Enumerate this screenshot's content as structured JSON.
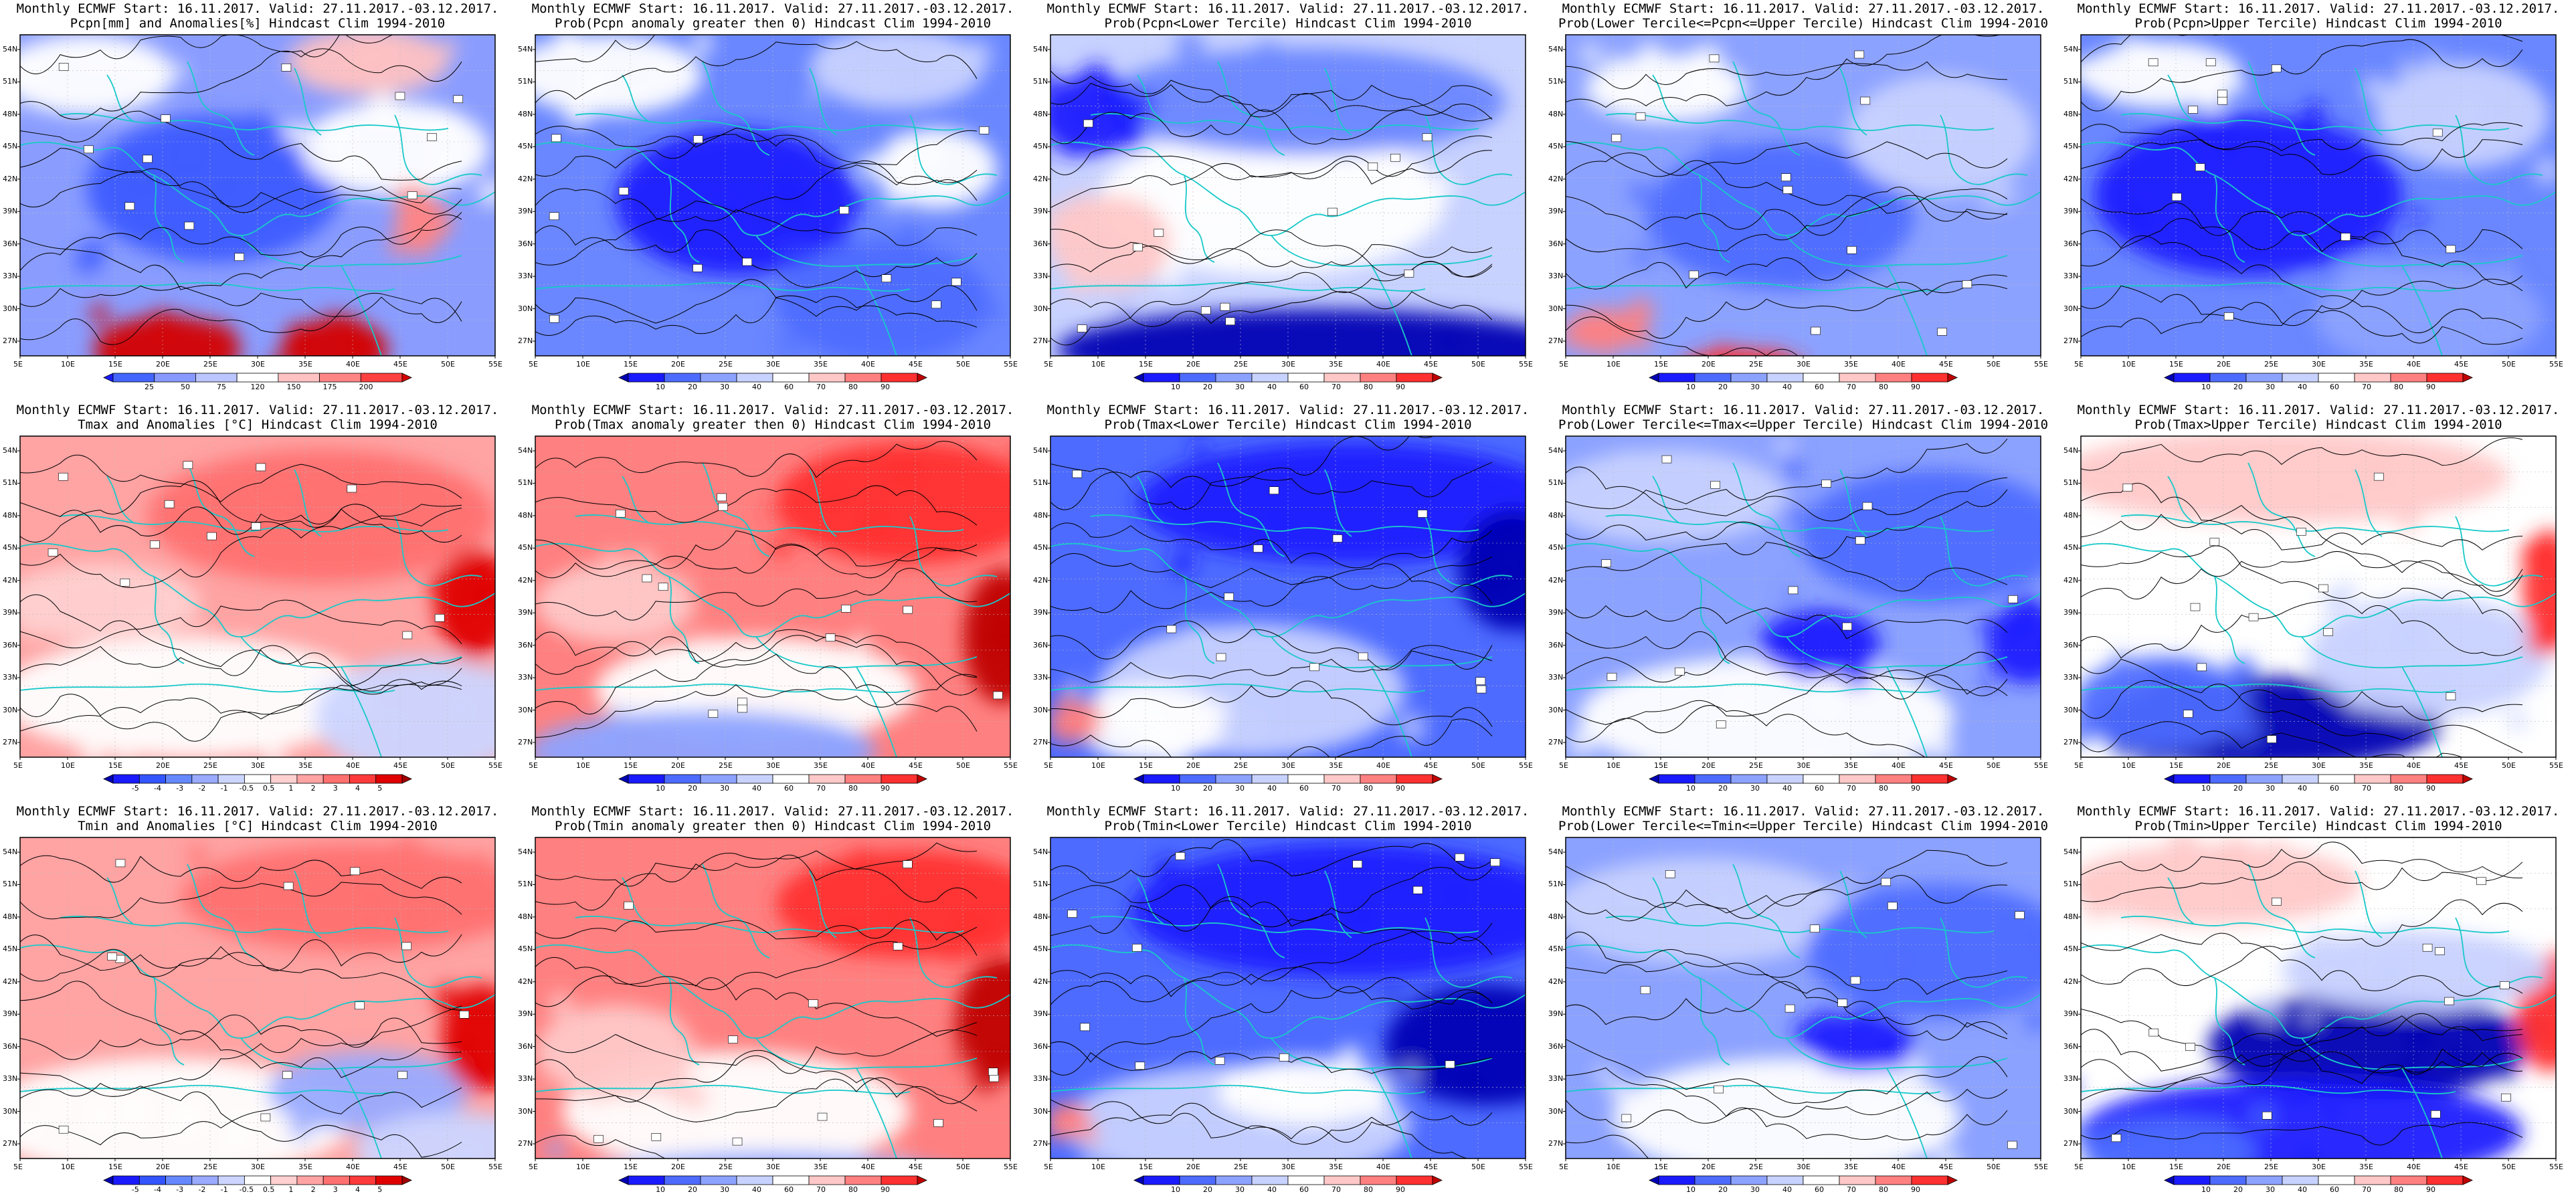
{
  "title_line1": "Monthly ECMWF Start: 16.11.2017. Valid: 27.11.2017.-03.12.2017.",
  "lat_labels": [
    "54N",
    "51N",
    "48N",
    "45N",
    "42N",
    "39N",
    "36N",
    "33N",
    "30N",
    "27N"
  ],
  "lon_labels": [
    "5E",
    "10E",
    "15E",
    "20E",
    "25E",
    "30E",
    "35E",
    "40E",
    "45E",
    "50E",
    "55E"
  ],
  "colors": {
    "coast": "#19c9c9",
    "contour": "#000000",
    "red_dark": "#c40000",
    "blue_dark": "#1e1ec8"
  },
  "colorbars": {
    "pcpn_anom": {
      "labels": [
        "25",
        "50",
        "75",
        "120",
        "150",
        "175",
        "200"
      ],
      "colors": [
        "#1a1aff",
        "#4466ff",
        "#8899ff",
        "#bbc5ff",
        "#ffffff",
        "#ffc2c2",
        "#ff8585",
        "#ff4040",
        "#d40000"
      ]
    },
    "temp_anom": {
      "labels": [
        "-5",
        "-4",
        "-3",
        "-2",
        "-1",
        "-0.5",
        "0.5",
        "1",
        "2",
        "3",
        "4",
        "5"
      ],
      "colors": [
        "#0000b4",
        "#1a1aff",
        "#3355ff",
        "#6688ff",
        "#99aaff",
        "#ccd5ff",
        "#ffffff",
        "#ffd0d0",
        "#ffa3a3",
        "#ff7070",
        "#ff3a3a",
        "#e00000",
        "#a00000"
      ]
    },
    "prob": {
      "labels": [
        "10",
        "20",
        "30",
        "40",
        "60",
        "70",
        "80",
        "90"
      ],
      "colors": [
        "#0000b4",
        "#1a1aff",
        "#4d6bff",
        "#8ca2ff",
        "#c8d2ff",
        "#ffffff",
        "#ffc8c8",
        "#ff8080",
        "#ff3030",
        "#c00000"
      ]
    }
  },
  "panels": [
    {
      "id": "r1c1",
      "title_line2": "Pcpn[mm] and Anomalies[%] Hindcast Clim 1994-2010",
      "scale": "pcpn_anom",
      "base": "#8a9dff",
      "blobs": [
        [
          "#3d5bff",
          290,
          230,
          190,
          110
        ],
        [
          "#ffffff",
          100,
          60,
          130,
          60
        ],
        [
          "#ffc2c2",
          520,
          40,
          120,
          50
        ],
        [
          "#ffffff",
          560,
          170,
          140,
          70
        ],
        [
          "#d40000",
          220,
          470,
          110,
          50
        ],
        [
          "#d40000",
          470,
          470,
          80,
          45
        ],
        [
          "#ff8585",
          600,
          280,
          40,
          40
        ]
      ]
    },
    {
      "id": "r1c2",
      "title_line2": "Prob(Pcpn anomaly greater then 0) Hindcast Clim 1994-2010",
      "scale": "prob",
      "base": "#6a87ff",
      "blobs": [
        [
          "#1a1aff",
          300,
          250,
          180,
          110
        ],
        [
          "#ffffff",
          110,
          60,
          140,
          60
        ],
        [
          "#c8d2ff",
          540,
          50,
          130,
          60
        ],
        [
          "#4d6bff",
          520,
          400,
          160,
          90
        ],
        [
          "#ffffff",
          600,
          200,
          90,
          60
        ]
      ]
    },
    {
      "id": "r1c3",
      "title_line2": "Prob(Pcpn<Lower Tercile) Hindcast Clim 1994-2010",
      "scale": "prob",
      "base": "#c8d2ff",
      "blobs": [
        [
          "#ffffff",
          330,
          250,
          260,
          110
        ],
        [
          "#6a87ff",
          380,
          100,
          300,
          80
        ],
        [
          "#0000b4",
          400,
          470,
          390,
          60
        ],
        [
          "#ffc8c8",
          90,
          310,
          90,
          70
        ],
        [
          "#1a1aff",
          60,
          120,
          80,
          60
        ]
      ]
    },
    {
      "id": "r1c4",
      "title_line2": "Prob(Lower Tercile<=Pcpn<=Upper Tercile) Hindcast Clim 1994-2010",
      "scale": "prob",
      "base": "#8ca2ff",
      "blobs": [
        [
          "#4d6bff",
          320,
          270,
          200,
          110
        ],
        [
          "#c8d2ff",
          560,
          150,
          140,
          90
        ],
        [
          "#ff3030",
          260,
          500,
          90,
          30
        ],
        [
          "#ff8080",
          60,
          440,
          60,
          30
        ],
        [
          "#ffffff",
          150,
          80,
          120,
          50
        ]
      ]
    },
    {
      "id": "r1c5",
      "title_line2": "Prob(Pcpn>Upper Tercile) Hindcast Clim 1994-2010",
      "scale": "prob",
      "base": "#6a87ff",
      "blobs": [
        [
          "#1a1aff",
          250,
          240,
          230,
          120
        ],
        [
          "#ffffff",
          120,
          60,
          120,
          50
        ],
        [
          "#c8d2ff",
          570,
          120,
          130,
          80
        ],
        [
          "#8ca2ff",
          520,
          420,
          170,
          80
        ]
      ]
    },
    {
      "id": "r2c1",
      "title_line2": "Tmax and Anomalies [°C] Hindcast Clim 1994-2010",
      "scale": "temp_anom",
      "base": "#ffa3a3",
      "blobs": [
        [
          "#ff7070",
          450,
          120,
          260,
          100
        ],
        [
          "#ffffff",
          250,
          390,
          280,
          90
        ],
        [
          "#ccd5ff",
          600,
          420,
          160,
          90
        ],
        [
          "#e00000",
          680,
          250,
          60,
          80
        ],
        [
          "#ffd0d0",
          120,
          250,
          150,
          60
        ]
      ]
    },
    {
      "id": "r2c2",
      "title_line2": "Prob(Tmax anomaly greater then 0) Hindcast Clim 1994-2010",
      "scale": "prob",
      "base": "#ff8080",
      "blobs": [
        [
          "#ff3030",
          560,
          100,
          200,
          90
        ],
        [
          "#c00000",
          700,
          300,
          60,
          100
        ],
        [
          "#ffffff",
          330,
          380,
          240,
          80
        ],
        [
          "#8ca2ff",
          250,
          470,
          260,
          60
        ],
        [
          "#ffc8c8",
          120,
          250,
          120,
          60
        ]
      ]
    },
    {
      "id": "r2c3",
      "title_line2": "Prob(Tmax<Lower Tercile) Hindcast Clim 1994-2010",
      "scale": "prob",
      "base": "#4d6bff",
      "blobs": [
        [
          "#1a1aff",
          450,
          100,
          320,
          90
        ],
        [
          "#0000b4",
          690,
          200,
          80,
          90
        ],
        [
          "#c8d2ff",
          300,
          380,
          230,
          100
        ],
        [
          "#ffffff",
          150,
          430,
          110,
          60
        ],
        [
          "#ff8080",
          40,
          420,
          30,
          20
        ]
      ]
    },
    {
      "id": "r2c4",
      "title_line2": "Prob(Lower Tercile<=Tmax<=Upper Tercile) Hindcast Clim 1994-2010",
      "scale": "prob",
      "base": "#8ca2ff",
      "blobs": [
        [
          "#c8d2ff",
          150,
          90,
          180,
          70
        ],
        [
          "#4d6bff",
          550,
          150,
          200,
          100
        ],
        [
          "#ffffff",
          300,
          420,
          280,
          90
        ],
        [
          "#1a1aff",
          380,
          310,
          90,
          50
        ],
        [
          "#1a1aff",
          690,
          310,
          60,
          60
        ]
      ]
    },
    {
      "id": "r2c5",
      "title_line2": "Prob(Tmax>Upper Tercile) Hindcast Clim 1994-2010",
      "scale": "prob",
      "base": "#ffffff",
      "blobs": [
        [
          "#ffc8c8",
          300,
          60,
          340,
          70
        ],
        [
          "#0000b4",
          280,
          430,
          260,
          70
        ],
        [
          "#4d6bff",
          120,
          400,
          130,
          70
        ],
        [
          "#c8d2ff",
          520,
          330,
          180,
          90
        ],
        [
          "#ff3030",
          700,
          230,
          40,
          90
        ]
      ]
    },
    {
      "id": "r3c1",
      "title_line2": "Tmin and Anomalies [°C] Hindcast Clim 1994-2010",
      "scale": "temp_anom",
      "base": "#ffa3a3",
      "blobs": [
        [
          "#ff7070",
          500,
          90,
          260,
          80
        ],
        [
          "#ffffff",
          220,
          420,
          280,
          90
        ],
        [
          "#99aaff",
          520,
          380,
          150,
          60
        ],
        [
          "#e00000",
          690,
          300,
          60,
          80
        ],
        [
          "#ccd5ff",
          650,
          470,
          150,
          60
        ]
      ]
    },
    {
      "id": "r3c2",
      "title_line2": "Prob(Tmin anomaly greater then 0) Hindcast Clim 1994-2010",
      "scale": "prob",
      "base": "#ff8080",
      "blobs": [
        [
          "#c00000",
          700,
          270,
          70,
          90
        ],
        [
          "#ff3030",
          560,
          100,
          200,
          80
        ],
        [
          "#ffffff",
          300,
          410,
          260,
          90
        ],
        [
          "#8ca2ff",
          350,
          520,
          300,
          50
        ],
        [
          "#ffc8c8",
          120,
          320,
          120,
          70
        ]
      ]
    },
    {
      "id": "r3c3",
      "title_line2": "Prob(Tmin<Lower Tercile) Hindcast Clim 1994-2010",
      "scale": "prob",
      "base": "#4d6bff",
      "blobs": [
        [
          "#1a1aff",
          450,
          110,
          330,
          100
        ],
        [
          "#0000b4",
          650,
          310,
          150,
          90
        ],
        [
          "#c8d2ff",
          280,
          430,
          260,
          90
        ],
        [
          "#ffffff",
          380,
          380,
          130,
          50
        ],
        [
          "#ff8080",
          30,
          420,
          25,
          25
        ]
      ]
    },
    {
      "id": "r3c4",
      "title_line2": "Prob(Lower Tercile<=Tmin<=Upper Tercile) Hindcast Clim 1994-2010",
      "scale": "prob",
      "base": "#8ca2ff",
      "blobs": [
        [
          "#c8d2ff",
          200,
          110,
          220,
          80
        ],
        [
          "#4d6bff",
          560,
          170,
          200,
          100
        ],
        [
          "#ffffff",
          330,
          420,
          260,
          90
        ],
        [
          "#1a1aff",
          440,
          310,
          80,
          40
        ]
      ]
    },
    {
      "id": "r3c5",
      "title_line2": "Prob(Tmin>Upper Tercile) Hindcast Clim 1994-2010",
      "scale": "prob",
      "base": "#ffffff",
      "blobs": [
        [
          "#ffc8c8",
          200,
          70,
          220,
          60
        ],
        [
          "#0000b4",
          430,
          310,
          240,
          80
        ],
        [
          "#1a1aff",
          330,
          440,
          330,
          80
        ],
        [
          "#4d6bff",
          130,
          470,
          130,
          50
        ],
        [
          "#ff3030",
          700,
          270,
          50,
          80
        ],
        [
          "#c8d2ff",
          500,
          200,
          200,
          60
        ]
      ]
    }
  ]
}
